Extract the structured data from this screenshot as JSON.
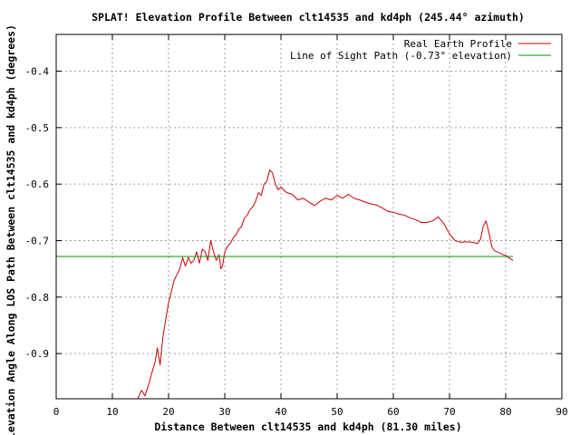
{
  "chart_data": {
    "type": "line",
    "title": "SPLAT! Elevation Profile Between clt14535 and kd4ph (245.44° azimuth)",
    "xlabel": "Distance Between clt14535 and kd4ph (81.30 miles)",
    "ylabel": "Elevation Angle Along LOS Path Between clt14535 and kd4ph (degrees)",
    "xlim": [
      0,
      90
    ],
    "ylim": [
      -0.98,
      -0.335
    ],
    "x_ticks": [
      0,
      10,
      20,
      30,
      40,
      50,
      60,
      70,
      80,
      90
    ],
    "x_tick_labels": [
      "0",
      "10",
      "20",
      "30",
      "40",
      "50",
      "60",
      "70",
      "80",
      "90"
    ],
    "y_ticks": [
      -0.4,
      -0.5,
      -0.6,
      -0.7,
      -0.8,
      -0.9
    ],
    "y_tick_labels": [
      "-0.4",
      "-0.5",
      "-0.6",
      "-0.7",
      "-0.8",
      "-0.9"
    ],
    "grid": true,
    "legend_position": "top-right",
    "series": [
      {
        "name": "Real Earth Profile",
        "color": "#cc0000",
        "points": [
          [
            14.5,
            -0.98
          ],
          [
            15.2,
            -0.965
          ],
          [
            15.8,
            -0.975
          ],
          [
            16.6,
            -0.95
          ],
          [
            17.0,
            -0.935
          ],
          [
            17.6,
            -0.915
          ],
          [
            18.0,
            -0.89
          ],
          [
            18.5,
            -0.92
          ],
          [
            19.0,
            -0.87
          ],
          [
            19.5,
            -0.84
          ],
          [
            20.0,
            -0.81
          ],
          [
            20.5,
            -0.79
          ],
          [
            21.0,
            -0.77
          ],
          [
            21.5,
            -0.76
          ],
          [
            22.0,
            -0.75
          ],
          [
            22.5,
            -0.73
          ],
          [
            23.0,
            -0.745
          ],
          [
            23.5,
            -0.73
          ],
          [
            24.0,
            -0.74
          ],
          [
            24.5,
            -0.735
          ],
          [
            25.0,
            -0.72
          ],
          [
            25.5,
            -0.74
          ],
          [
            26.0,
            -0.715
          ],
          [
            26.5,
            -0.72
          ],
          [
            27.0,
            -0.735
          ],
          [
            27.5,
            -0.7
          ],
          [
            28.0,
            -0.72
          ],
          [
            28.5,
            -0.735
          ],
          [
            29.0,
            -0.725
          ],
          [
            29.3,
            -0.75
          ],
          [
            29.6,
            -0.745
          ],
          [
            30.0,
            -0.72
          ],
          [
            30.5,
            -0.71
          ],
          [
            31.0,
            -0.705
          ],
          [
            31.5,
            -0.695
          ],
          [
            32.0,
            -0.69
          ],
          [
            32.5,
            -0.68
          ],
          [
            33.0,
            -0.675
          ],
          [
            33.5,
            -0.66
          ],
          [
            34.0,
            -0.655
          ],
          [
            34.5,
            -0.645
          ],
          [
            35.0,
            -0.64
          ],
          [
            35.5,
            -0.63
          ],
          [
            36.0,
            -0.615
          ],
          [
            36.5,
            -0.62
          ],
          [
            37.0,
            -0.6
          ],
          [
            37.5,
            -0.595
          ],
          [
            38.0,
            -0.575
          ],
          [
            38.5,
            -0.58
          ],
          [
            39.0,
            -0.6
          ],
          [
            39.5,
            -0.61
          ],
          [
            40.0,
            -0.605
          ],
          [
            41.0,
            -0.615
          ],
          [
            42.0,
            -0.618
          ],
          [
            43.0,
            -0.628
          ],
          [
            44.0,
            -0.625
          ],
          [
            45.0,
            -0.632
          ],
          [
            46.0,
            -0.638
          ],
          [
            47.0,
            -0.63
          ],
          [
            48.0,
            -0.625
          ],
          [
            49.0,
            -0.628
          ],
          [
            50.0,
            -0.62
          ],
          [
            51.0,
            -0.625
          ],
          [
            52.0,
            -0.618
          ],
          [
            53.0,
            -0.625
          ],
          [
            54.0,
            -0.628
          ],
          [
            55.0,
            -0.632
          ],
          [
            56.0,
            -0.635
          ],
          [
            57.0,
            -0.637
          ],
          [
            58.0,
            -0.642
          ],
          [
            59.0,
            -0.648
          ],
          [
            60.0,
            -0.65
          ],
          [
            61.0,
            -0.653
          ],
          [
            62.0,
            -0.655
          ],
          [
            63.0,
            -0.66
          ],
          [
            64.0,
            -0.663
          ],
          [
            65.0,
            -0.668
          ],
          [
            66.0,
            -0.668
          ],
          [
            67.0,
            -0.665
          ],
          [
            68.0,
            -0.658
          ],
          [
            69.0,
            -0.67
          ],
          [
            70.0,
            -0.688
          ],
          [
            71.0,
            -0.7
          ],
          [
            72.0,
            -0.703
          ],
          [
            73.0,
            -0.702
          ],
          [
            74.0,
            -0.703
          ],
          [
            75.0,
            -0.705
          ],
          [
            75.5,
            -0.698
          ],
          [
            76.0,
            -0.675
          ],
          [
            76.5,
            -0.665
          ],
          [
            77.0,
            -0.685
          ],
          [
            77.5,
            -0.71
          ],
          [
            78.0,
            -0.718
          ],
          [
            78.5,
            -0.72
          ],
          [
            79.0,
            -0.722
          ],
          [
            79.5,
            -0.725
          ],
          [
            80.0,
            -0.726
          ],
          [
            80.5,
            -0.73
          ],
          [
            81.0,
            -0.733
          ],
          [
            81.3,
            -0.735
          ]
        ]
      },
      {
        "name": "Line of Sight Path (-0.73° elevation)",
        "color": "#009900",
        "points": [
          [
            0,
            -0.728
          ],
          [
            81.3,
            -0.728
          ]
        ]
      }
    ]
  }
}
